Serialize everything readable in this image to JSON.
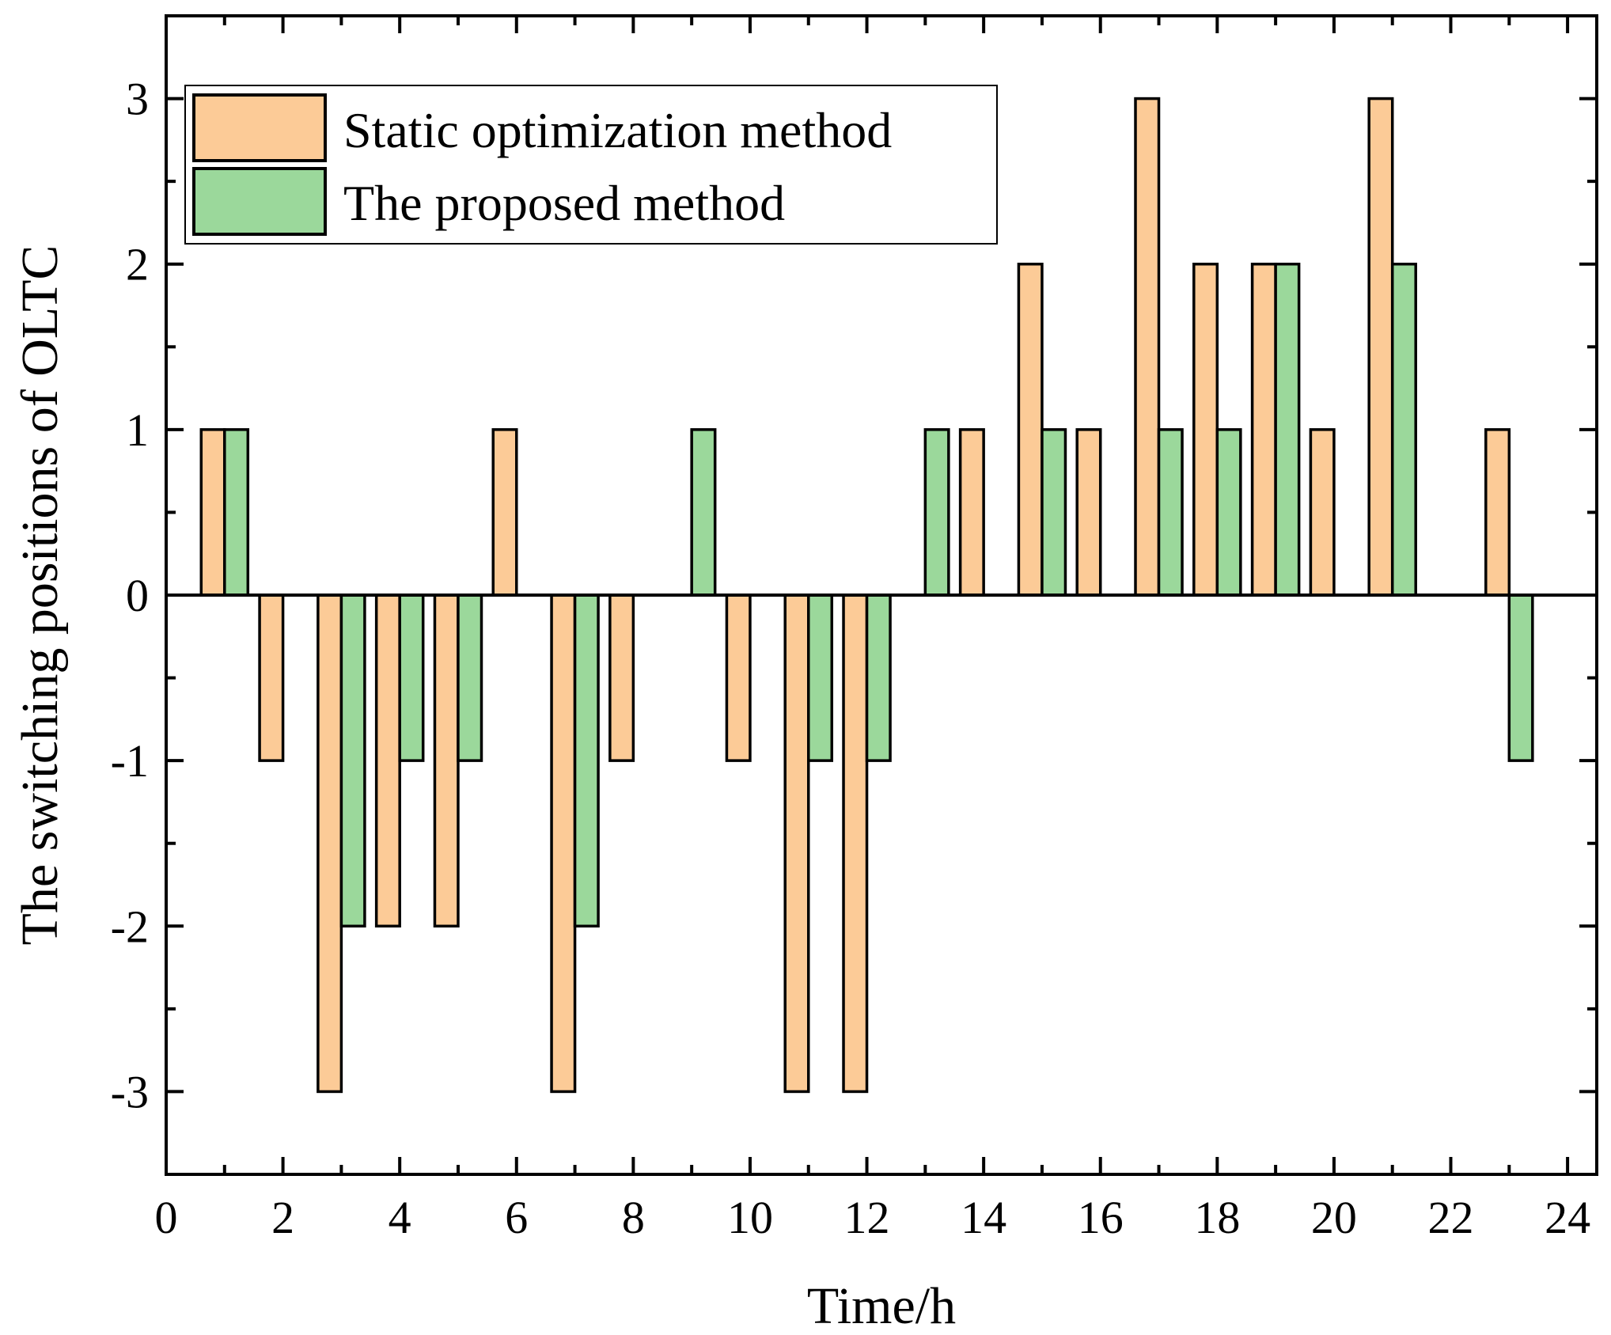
{
  "chart_data": {
    "type": "bar",
    "title": "",
    "xlabel": "Time/h",
    "ylabel": "The switching positions of OLTC",
    "xlim": [
      0,
      24.5
    ],
    "ylim": [
      -3.5,
      3.5
    ],
    "x_ticks": [
      "0",
      "2",
      "4",
      "6",
      "8",
      "10",
      "12",
      "14",
      "16",
      "18",
      "20",
      "22",
      "24"
    ],
    "y_ticks": [
      "-3",
      "-2",
      "-1",
      "0",
      "1",
      "2",
      "3"
    ],
    "categories": [
      1,
      2,
      3,
      4,
      5,
      6,
      7,
      8,
      9,
      10,
      11,
      12,
      13,
      14,
      15,
      16,
      17,
      18,
      19,
      20,
      21,
      22,
      23,
      24
    ],
    "legend_position": "top-left",
    "series": [
      {
        "name": "Static optimization method",
        "color": "#FCCB97",
        "values": [
          1,
          -1,
          -3,
          -2,
          -2,
          1,
          -3,
          -1,
          0,
          -1,
          -3,
          -3,
          0,
          1,
          2,
          1,
          3,
          2,
          2,
          1,
          3,
          0,
          1,
          0
        ]
      },
      {
        "name": "The proposed method",
        "color": "#9BD89B",
        "values": [
          1,
          0,
          -2,
          -1,
          -1,
          0,
          -2,
          0,
          1,
          0,
          -1,
          -1,
          1,
          0,
          1,
          0,
          1,
          1,
          2,
          0,
          2,
          0,
          -1,
          0
        ]
      }
    ]
  }
}
